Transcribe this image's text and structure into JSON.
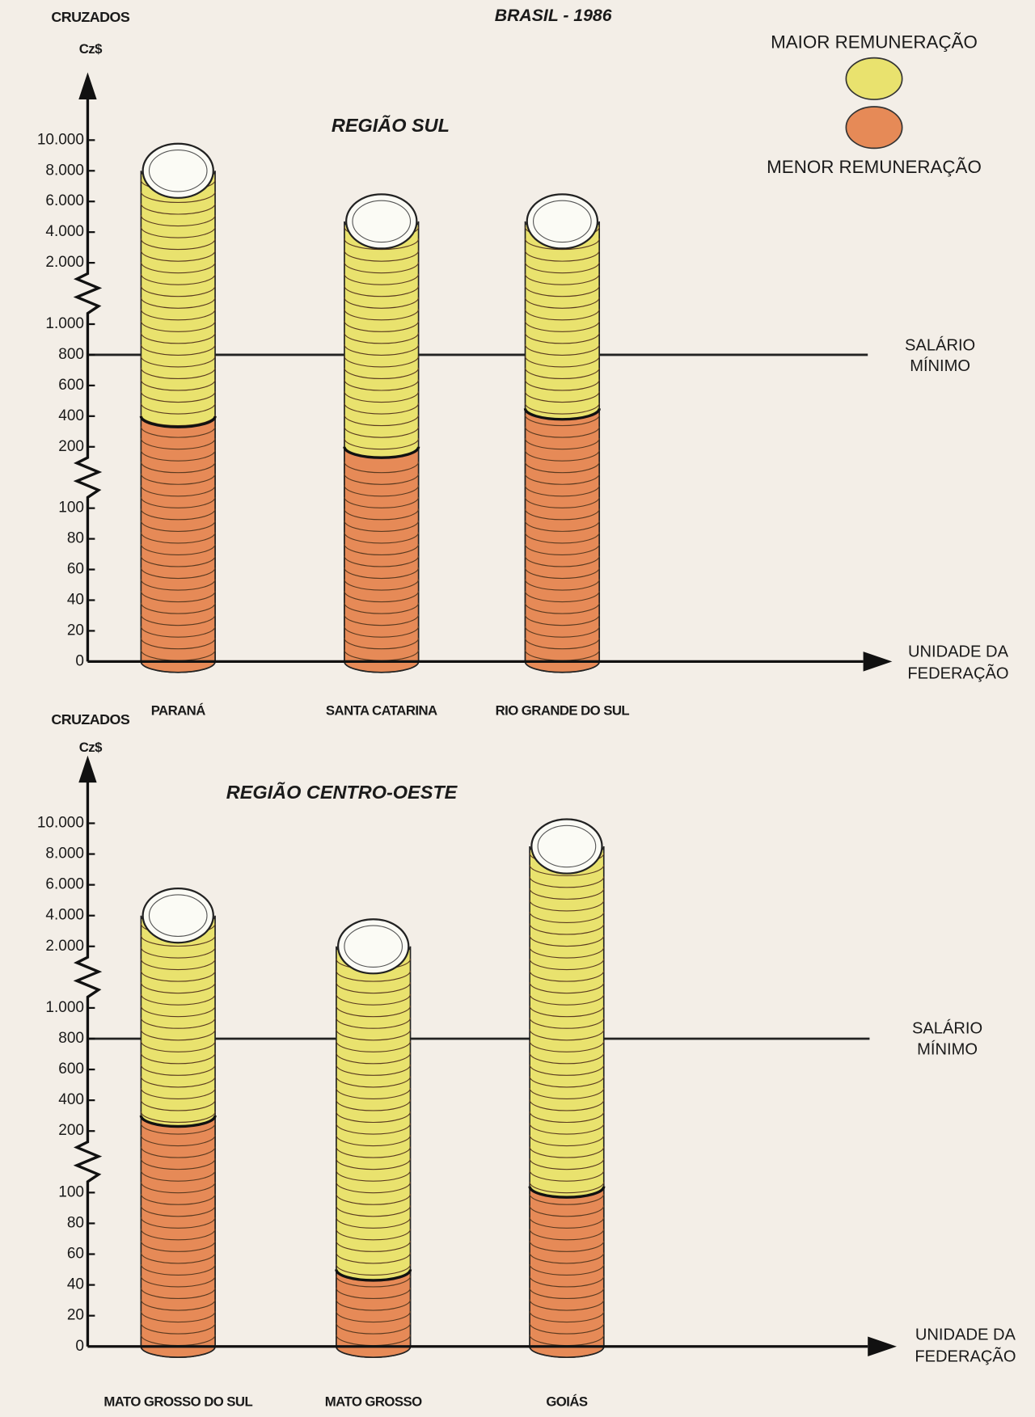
{
  "header": {
    "title": "BRASIL - 1986"
  },
  "chart_data": [
    {
      "type": "bar",
      "title": "REGIÃO SUL",
      "y_label": "CRUZADOS",
      "y_unit": "Cz$",
      "x_label": [
        "UNIDADE DA",
        "FEDERAÇÃO"
      ],
      "categories": [
        "PARANÁ",
        "SANTA CATARINA",
        "RIO GRANDE DO SUL"
      ],
      "series": [
        {
          "name": "MAIOR REMUNERAÇÃO",
          "color": "#e9e26e",
          "values": [
            8000,
            4700,
            4700
          ]
        },
        {
          "name": "MENOR REMUNERAÇÃO",
          "color": "#e68a57",
          "values": [
            400,
            200,
            450
          ]
        }
      ],
      "ylim": [
        0,
        10000
      ],
      "yticks": [
        0,
        20,
        40,
        60,
        80,
        100,
        200,
        400,
        600,
        800,
        {
          "value": 1000,
          "label": "1.000"
        },
        {
          "value": 2000,
          "label": "2.000"
        },
        {
          "value": 4000,
          "label": "4.000"
        },
        {
          "value": 6000,
          "label": "6.000"
        },
        {
          "value": 8000,
          "label": "8.000"
        },
        {
          "value": 10000,
          "label": "10.000"
        }
      ],
      "axis_breaks": [
        [
          100,
          200
        ],
        [
          1000,
          2000
        ]
      ],
      "reference_lines": [
        {
          "value": 800,
          "label": [
            "SALÁRIO",
            "MÍNIMO"
          ]
        }
      ]
    },
    {
      "type": "bar",
      "title": "REGIÃO CENTRO-OESTE",
      "y_label": "CRUZADOS",
      "y_unit": "Cz$",
      "x_label": [
        "UNIDADE DA",
        "FEDERAÇÃO"
      ],
      "categories": [
        "MATO GROSSO DO SUL",
        "MATO GROSSO",
        "GOIÁS"
      ],
      "series": [
        {
          "color": "#e9e26e",
          "values": [
            4000,
            2000,
            8500
          ]
        },
        {
          "color": "#e68a57",
          "values": [
            300,
            50,
            110
          ]
        }
      ],
      "ylim": [
        0,
        10000
      ],
      "yticks": [
        0,
        20,
        40,
        60,
        80,
        100,
        200,
        400,
        600,
        800,
        {
          "value": 1000,
          "label": "1.000"
        },
        {
          "value": 2000,
          "label": "2.000"
        },
        {
          "value": 4000,
          "label": "4.000"
        },
        {
          "value": 6000,
          "label": "6.000"
        },
        {
          "value": 8000,
          "label": "8.000"
        },
        {
          "value": 10000,
          "label": "10.000"
        }
      ],
      "axis_breaks": [
        [
          100,
          200
        ],
        [
          1000,
          2000
        ]
      ],
      "reference_lines": [
        {
          "value": 800,
          "label": [
            "SALÁRIO",
            "MÍNIMO"
          ]
        }
      ]
    }
  ]
}
